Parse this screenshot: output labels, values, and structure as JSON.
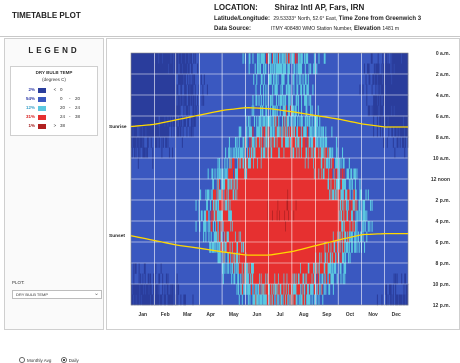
{
  "app": {
    "title": "TIMETABLE PLOT"
  },
  "location": {
    "label": "LOCATION:",
    "value": "Shiraz Intl AP, Fars, IRN",
    "latlon_label": "Latitude/Longitude:",
    "latlon_value": "29.53333° North, 52.6° East,",
    "timezone_label": "Time Zone from Greenwich",
    "timezone_value": "3",
    "source_label": "Data Source:",
    "source_value": "ITMY     408480 WMO Station Number,",
    "elevation_label": "Elevation",
    "elevation_value": "1481 m"
  },
  "legend": {
    "title": "LEGEND",
    "heading": "DRY BULB TEMP",
    "units": "(degrees C)",
    "rows": [
      {
        "pct": "2%",
        "pct_color": "#2e3aa8",
        "color": "#2a3d9c",
        "op": "<",
        "lo": "0",
        "dash": "",
        "hi": ""
      },
      {
        "pct": "54%",
        "pct_color": "#2e3aa8",
        "color": "#3a58c0",
        "op": "",
        "lo": "0",
        "dash": "-",
        "hi": "20"
      },
      {
        "pct": "12%",
        "pct_color": "#3aa0c8",
        "color": "#5bc8e0",
        "op": "",
        "lo": "20",
        "dash": "-",
        "hi": "24"
      },
      {
        "pct": "31%",
        "pct_color": "#d82020",
        "color": "#e63030",
        "op": "",
        "lo": "24",
        "dash": "-",
        "hi": "38"
      },
      {
        "pct": "1%",
        "pct_color": "#a01818",
        "color": "#b02020",
        "op": ">",
        "lo": "38",
        "dash": "",
        "hi": ""
      }
    ]
  },
  "controls": {
    "plot_label": "PLOT:",
    "plot_value": "DRY BULB TEMP",
    "radio_monthly": "Monthly Avg",
    "radio_daily": "Daily",
    "selected": "daily"
  },
  "chart_data": {
    "type": "heatmap",
    "x_labels": [
      "Jan",
      "Feb",
      "Mar",
      "Apr",
      "May",
      "Jun",
      "Jul",
      "Aug",
      "Sep",
      "Oct",
      "Nov",
      "Dec"
    ],
    "y_labels": [
      "0 a.m.",
      "2 a.m.",
      "4 a.m.",
      "6 a.m.",
      "8 a.m.",
      "10 a.m.",
      "12 noon",
      "2 p.m.",
      "4 p.m.",
      "6 p.m.",
      "8 p.m.",
      "10 p.m.",
      "12 p.m."
    ],
    "annotations": [
      "Sunrise",
      "Sunset"
    ],
    "sunrise_hours": [
      7.0,
      6.8,
      6.35,
      5.9,
      5.45,
      5.2,
      5.3,
      5.6,
      5.95,
      6.3,
      6.75,
      7.05
    ],
    "sunset_hours": [
      17.4,
      17.85,
      18.3,
      18.6,
      18.95,
      19.25,
      19.25,
      18.9,
      18.35,
      17.8,
      17.3,
      17.2
    ],
    "colors": {
      "below_0": "#2a3d9c",
      "0_20": "#3a58c0",
      "20_24": "#5bc8e0",
      "24_38": "#e63030",
      "above_38": "#b02020",
      "sun_line": "#ffd800",
      "grid": "#ffffff"
    }
  }
}
